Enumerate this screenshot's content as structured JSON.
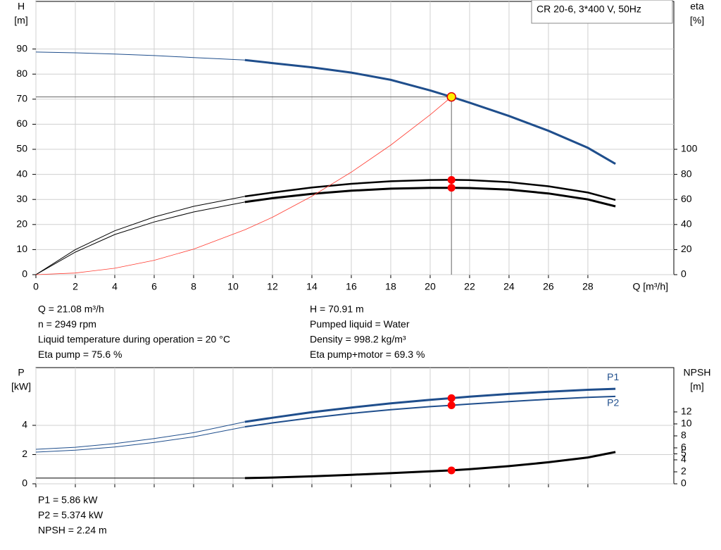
{
  "chart_data": [
    {
      "type": "line",
      "title": "CR 20-6, 3*400 V, 50Hz",
      "ylabel": [
        "H",
        "[m]"
      ],
      "y2label": [
        "eta",
        "[%]"
      ],
      "xlabel": "Q [m³/h]",
      "x": [
        0,
        2,
        4,
        6,
        8,
        10.6,
        12,
        14,
        16,
        18,
        20,
        21.08,
        22,
        24,
        26,
        28,
        29.4
      ],
      "xlim": [
        0,
        32.36
      ],
      "xticks": [
        0,
        2,
        4,
        6,
        8,
        10,
        12,
        14,
        16,
        18,
        20,
        22,
        24,
        26,
        28
      ],
      "xtick_labels": true,
      "ylim": [
        0,
        109
      ],
      "yticks": [
        0,
        10,
        20,
        30,
        40,
        50,
        60,
        70,
        80,
        90
      ],
      "y2lim": [
        0,
        218
      ],
      "y2ticks": [
        0,
        20,
        40,
        60,
        80,
        100
      ],
      "grid": true,
      "series": [
        {
          "color": "#1f4e8c",
          "width": 1,
          "values": [
            88.8,
            88.5,
            88.0,
            87.4,
            86.6,
            85.6,
            null,
            null,
            null,
            null,
            null,
            null,
            null,
            null,
            null,
            null,
            null
          ]
        },
        {
          "color": "#1f4e8c",
          "width": 3,
          "values": [
            null,
            null,
            null,
            null,
            null,
            85.6,
            84.4,
            82.7,
            80.6,
            77.7,
            73.5,
            70.91,
            68.6,
            63.3,
            57.4,
            50.6,
            44.2
          ]
        },
        {
          "color": "#000000",
          "width": 1,
          "axis": "y2",
          "values": [
            0,
            20,
            35,
            46,
            54.5,
            62.4,
            null,
            null,
            null,
            null,
            null,
            null,
            null,
            null,
            null,
            null,
            null
          ]
        },
        {
          "color": "#000000",
          "width": 2.5,
          "axis": "y2",
          "values": [
            null,
            null,
            null,
            null,
            null,
            62.4,
            65.5,
            69.5,
            72.5,
            74.5,
            75.5,
            75.6,
            75.4,
            73.8,
            70.5,
            65.5,
            59.6
          ]
        },
        {
          "color": "#000000",
          "width": 1,
          "axis": "y2",
          "values": [
            0,
            18,
            32,
            42,
            50,
            57.9,
            null,
            null,
            null,
            null,
            null,
            null,
            null,
            null,
            null,
            null,
            null
          ]
        },
        {
          "color": "#000000",
          "width": 3,
          "axis": "y2",
          "values": [
            null,
            null,
            null,
            null,
            null,
            57.9,
            61,
            64.5,
            67,
            68.6,
            69.3,
            69.3,
            69.1,
            67.8,
            64.8,
            60,
            54.5
          ]
        },
        {
          "color": "#ff3b30",
          "width": 0.8,
          "values": [
            0,
            0.64,
            2.55,
            5.74,
            10.2,
            17.9,
            22.9,
            31.3,
            40.9,
            51.7,
            63.8,
            70.91,
            null,
            null,
            null,
            null,
            null
          ]
        }
      ],
      "operating_point": {
        "x": 21.08,
        "y": 70.91,
        "color": "#ffee00"
      },
      "points": [
        {
          "x": 21.08,
          "y": 75.6,
          "axis": "y2",
          "color": "#ff0000"
        },
        {
          "x": 21.08,
          "y": 69.3,
          "axis": "y2",
          "color": "#ff0000"
        }
      ],
      "readouts": [
        [
          "Q = 21.08 m³/h",
          "n = 2949 rpm",
          "Liquid temperature during operation = 20 °C",
          "Eta pump = 75.6 %"
        ],
        [
          "H = 70.91 m",
          "Pumped liquid = Water",
          "Density = 998.2 kg/m³",
          "Eta pump+motor = 69.3 %"
        ]
      ]
    },
    {
      "type": "line",
      "ylabel": [
        "P",
        "[kW]"
      ],
      "y2label": [
        "NPSH",
        "[m]"
      ],
      "x": [
        0,
        2,
        4,
        6,
        8,
        10.6,
        12,
        14,
        16,
        18,
        20,
        21.08,
        22,
        24,
        26,
        28,
        29.4
      ],
      "xlim": [
        0,
        32.36
      ],
      "xticks": [
        0,
        2,
        4,
        6,
        8,
        10,
        12,
        14,
        16,
        18,
        20,
        22,
        24,
        26,
        28
      ],
      "xtick_labels": false,
      "ylim": [
        0,
        7.95
      ],
      "yticks": [
        0,
        2,
        4
      ],
      "y2lim": [
        0,
        19.4
      ],
      "y2ticks": [
        0,
        2,
        4,
        5,
        6,
        8,
        10,
        12
      ],
      "grid": true,
      "series": [
        {
          "color": "#1f4e8c",
          "width": 1,
          "values": [
            2.36,
            2.5,
            2.75,
            3.1,
            3.5,
            4.24,
            null,
            null,
            null,
            null,
            null,
            null,
            null,
            null,
            null,
            null,
            null
          ]
        },
        {
          "name": "P1",
          "color": "#1f4e8c",
          "width": 3,
          "values": [
            null,
            null,
            null,
            null,
            null,
            4.24,
            4.52,
            4.9,
            5.22,
            5.5,
            5.75,
            5.86,
            5.96,
            6.15,
            6.3,
            6.43,
            6.5
          ]
        },
        {
          "color": "#1f4e8c",
          "width": 1,
          "values": [
            2.17,
            2.3,
            2.52,
            2.83,
            3.22,
            3.9,
            null,
            null,
            null,
            null,
            null,
            null,
            null,
            null,
            null,
            null,
            null
          ]
        },
        {
          "name": "P2",
          "color": "#1f4e8c",
          "width": 2,
          "values": [
            null,
            null,
            null,
            null,
            null,
            3.9,
            4.17,
            4.52,
            4.82,
            5.07,
            5.28,
            5.374,
            5.46,
            5.63,
            5.78,
            5.91,
            5.98
          ]
        },
        {
          "color": "#000000",
          "width": 1,
          "axis": "y2",
          "values": [
            0.95,
            0.95,
            0.95,
            0.95,
            0.95,
            0.95,
            null,
            null,
            null,
            null,
            null,
            null,
            null,
            null,
            null,
            null,
            null
          ]
        },
        {
          "color": "#000000",
          "width": 3,
          "axis": "y2",
          "values": [
            null,
            null,
            null,
            null,
            null,
            0.95,
            1.05,
            1.25,
            1.5,
            1.78,
            2.08,
            2.24,
            2.45,
            2.95,
            3.6,
            4.4,
            5.3
          ]
        }
      ],
      "points": [
        {
          "x": 21.08,
          "y": 5.86,
          "color": "#ff0000"
        },
        {
          "x": 21.08,
          "y": 5.374,
          "color": "#ff0000"
        },
        {
          "x": 21.08,
          "y": 2.24,
          "axis": "y2",
          "color": "#ff0000"
        }
      ],
      "readouts": [
        [
          "P1 = 5.86 kW",
          "P2 = 5.374 kW",
          "NPSH = 2.24 m"
        ]
      ]
    }
  ]
}
